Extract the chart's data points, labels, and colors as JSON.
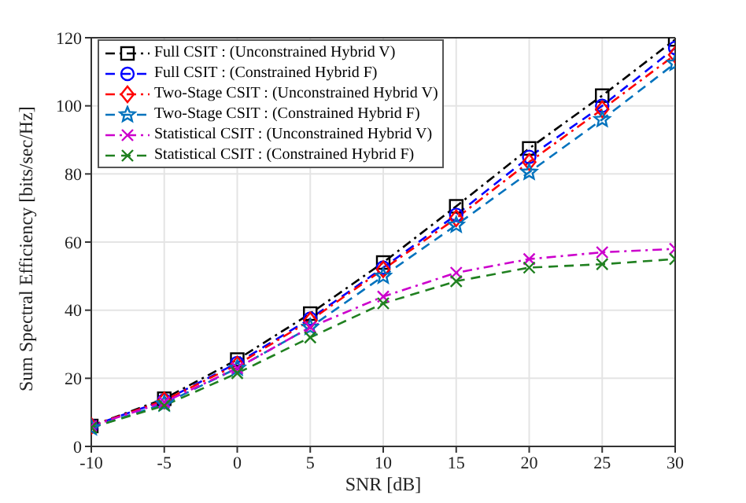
{
  "chart_data": {
    "type": "line",
    "xlabel": "SNR [dB]",
    "ylabel": "Sum Spectral Efficiency [bits/sec/Hz]",
    "x": [
      -10,
      -5,
      0,
      5,
      10,
      15,
      20,
      25,
      30
    ],
    "xlim": [
      -10,
      30
    ],
    "xticks": [
      -10,
      -5,
      0,
      5,
      10,
      15,
      20,
      25,
      30
    ],
    "ylim": [
      0,
      120
    ],
    "yticks": [
      0,
      20,
      40,
      60,
      80,
      100,
      120
    ],
    "grid": true,
    "legend": "top left",
    "series": [
      {
        "name": "Full CSIT : (Unconstrained Hybrid V)",
        "color": "#000000",
        "marker": "square",
        "line_style": "dashdot",
        "values": [
          6,
          14,
          25.5,
          39,
          54,
          70.5,
          87.5,
          103,
          119.5
        ]
      },
      {
        "name": "Full CSIT : (Constrained Hybrid F)",
        "color": "#0000ff",
        "marker": "circle",
        "line_style": "dashed",
        "values": [
          6,
          13.5,
          24.5,
          37.5,
          52.5,
          68,
          85,
          100,
          117
        ]
      },
      {
        "name": "Two-Stage CSIT : (Unconstrained Hybrid V)",
        "color": "#ff0000",
        "marker": "diamond",
        "line_style": "dashdot",
        "values": [
          6,
          13.5,
          24,
          37,
          52,
          67,
          83.5,
          99,
          115
        ]
      },
      {
        "name": "Two-Stage CSIT : (Constrained Hybrid F)",
        "color": "#0072bd",
        "marker": "star",
        "line_style": "dashed",
        "values": [
          5.5,
          12.5,
          23,
          35,
          50,
          65,
          80.5,
          96,
          112.5
        ]
      },
      {
        "name": "Statistical CSIT : (Unconstrained Hybrid V)",
        "color": "#cc00cc",
        "marker": "cross",
        "line_style": "dashdot",
        "values": [
          6,
          13,
          23,
          35,
          44,
          51,
          55,
          57,
          58
        ]
      },
      {
        "name": "Statistical CSIT : (Constrained Hybrid F)",
        "color": "#208020",
        "marker": "cross",
        "line_style": "dashed",
        "values": [
          5.5,
          12,
          21.5,
          32,
          42,
          48.5,
          52.5,
          53.5,
          55
        ]
      }
    ]
  }
}
